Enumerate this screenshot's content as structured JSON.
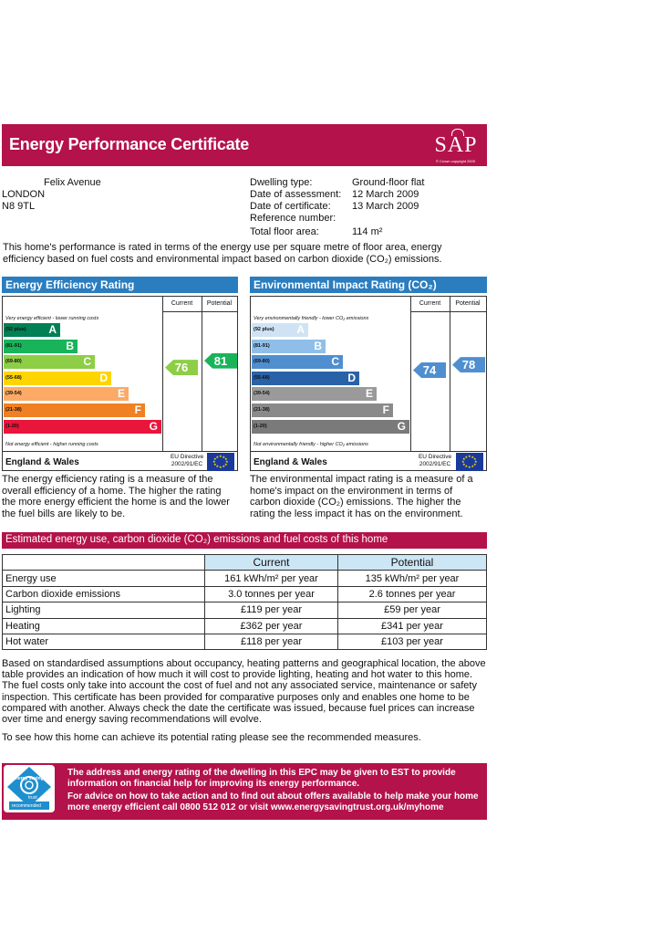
{
  "header": {
    "title": "Energy Performance Certificate",
    "logo": "SAP",
    "logo_small": "© Crown copyright 2009",
    "color": "#b4124a"
  },
  "address": {
    "line1": "Felix Avenue",
    "line2": "LONDON",
    "line3": "N8 9TL"
  },
  "meta": [
    {
      "label": "Dwelling type:",
      "value": "Ground-floor flat"
    },
    {
      "label": "Date of assessment:",
      "value": "12 March 2009"
    },
    {
      "label": "Date of certificate:",
      "value": "13 March 2009"
    },
    {
      "label": "Reference number:",
      "value": ""
    },
    {
      "label": "Total floor area:",
      "value": "114 m²"
    }
  ],
  "intro": "This home's performance is rated in terms of the energy use per square metre of floor area, energy efficiency based on fuel costs and environmental impact based on carbon dioxide (CO₂) emissions.",
  "efficiency": {
    "title": "Energy Efficiency Rating",
    "col_current": "Current",
    "col_potential": "Potential",
    "top_note": "Very energy efficient - lower running costs",
    "bottom_note": "Not energy efficient - higher running costs",
    "bands": [
      {
        "range": "(92 plus)",
        "letter": "A",
        "color": "#008054"
      },
      {
        "range": "(81-91)",
        "letter": "B",
        "color": "#19b459"
      },
      {
        "range": "(69-80)",
        "letter": "C",
        "color": "#8dce46"
      },
      {
        "range": "(55-68)",
        "letter": "D",
        "color": "#ffd500"
      },
      {
        "range": "(39-54)",
        "letter": "E",
        "color": "#fcaa65"
      },
      {
        "range": "(21-38)",
        "letter": "F",
        "color": "#ef8023"
      },
      {
        "range": "(1-20)",
        "letter": "G",
        "color": "#e9153b"
      }
    ],
    "current": 76,
    "potential": 81,
    "current_color": "#8dce46",
    "potential_color": "#19b459",
    "footer_region": "England & Wales",
    "eu": "EU Directive 2002/91/EC",
    "description": "The energy efficiency rating is a measure of the overall efficiency of a home. The higher the rating the more energy efficient the home is and the lower the fuel bills are likely to be."
  },
  "environmental": {
    "title": "Environmental Impact Rating (CO₂)",
    "col_current": "Current",
    "col_potential": "Potential",
    "top_note": "Very environmentally friendly - lower CO₂ emissions",
    "bottom_note": "Not environmentally friendly - higher CO₂ emissions",
    "bands": [
      {
        "range": "(92 plus)",
        "letter": "A",
        "color": "#cfe3f4"
      },
      {
        "range": "(81-91)",
        "letter": "B",
        "color": "#8fbfe8"
      },
      {
        "range": "(69-80)",
        "letter": "C",
        "color": "#4f8fd0"
      },
      {
        "range": "(55-68)",
        "letter": "D",
        "color": "#2a62a8"
      },
      {
        "range": "(39-54)",
        "letter": "E",
        "color": "#9a9a9a"
      },
      {
        "range": "(21-38)",
        "letter": "F",
        "color": "#8a8a8a"
      },
      {
        "range": "(1-20)",
        "letter": "G",
        "color": "#7a7a7a"
      }
    ],
    "current": 74,
    "potential": 78,
    "current_color": "#4f8fd0",
    "potential_color": "#4f8fd0",
    "footer_region": "England & Wales",
    "eu": "EU Directive 2002/91/EC",
    "description": "The environmental impact rating is a measure of a home's impact on the environment in terms of carbon dioxide (CO₂) emissions. The higher the rating the less impact it has on the environment."
  },
  "estimated": {
    "title": "Estimated energy use, carbon dioxide (CO₂) emissions and fuel costs of this home",
    "col_current": "Current",
    "col_potential": "Potential",
    "rows": [
      {
        "label": "Energy use",
        "current": "161 kWh/m² per year",
        "potential": "135 kWh/m² per year"
      },
      {
        "label": "Carbon dioxide emissions",
        "current": "3.0 tonnes per year",
        "potential": "2.6 tonnes per year"
      },
      {
        "label": "Lighting",
        "current": "£119 per year",
        "potential": "£59 per year"
      },
      {
        "label": "Heating",
        "current": "£362 per year",
        "potential": "£341 per year"
      },
      {
        "label": "Hot water",
        "current": "£118 per year",
        "potential": "£103 per year"
      }
    ]
  },
  "paragraph": "Based on standardised assumptions about occupancy, heating patterns and geographical location, the above table provides an indication of how much it will cost to provide lighting, heating and hot water to this home. The fuel costs only take into account the cost of fuel and not any associated service, maintenance or safety inspection. This certificate has been provided for comparative purposes only and enables one home to be compared with another. Always check the date the certificate was issued, because fuel prices can increase over time and energy saving recommendations will evolve.",
  "paragraph2": "To see how this home can achieve its potential rating please see the recommended measures.",
  "est_box": {
    "text1": "The address and energy rating of the dwelling in this EPC may be given to EST to provide information on financial help for improving its energy performance.",
    "text2": "For advice on how to take action and to find out about offers available to help make your home more energy efficient call 0800 512 012 or visit www.energysavingtrust.org.uk/myhome",
    "logo_top": "energy saving",
    "logo_trust": "trust",
    "logo_bottom": "recommended",
    "small": "Energy Saving Trust Recommended logo"
  }
}
